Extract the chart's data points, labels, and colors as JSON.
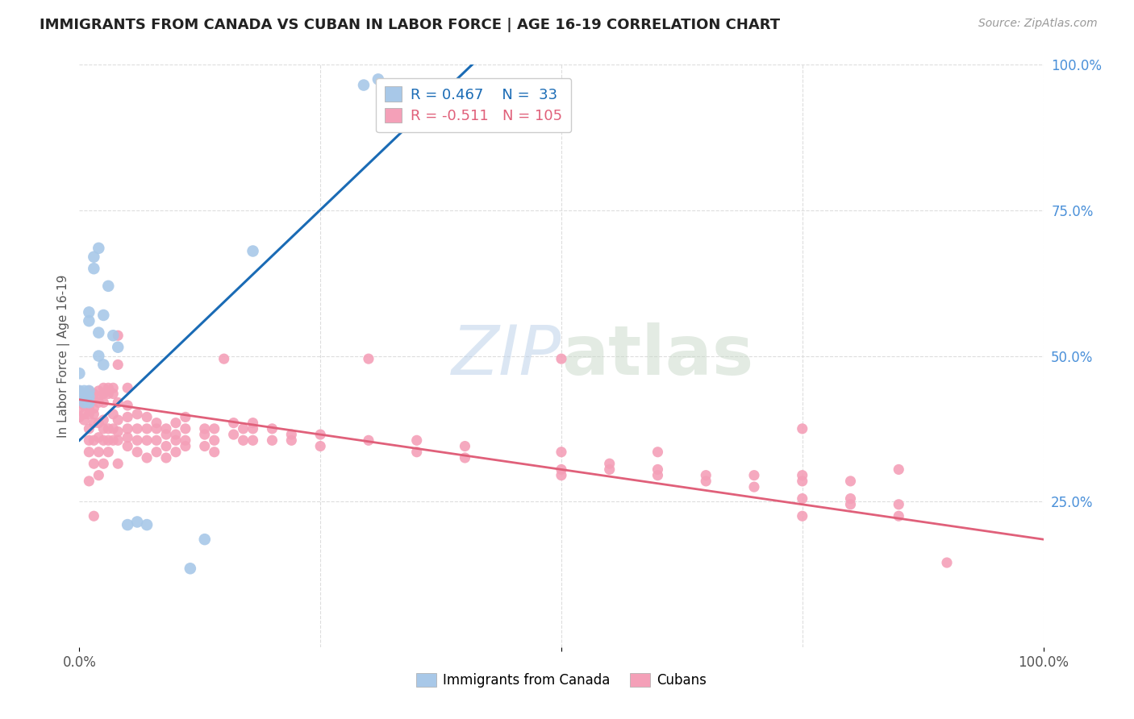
{
  "title": "IMMIGRANTS FROM CANADA VS CUBAN IN LABOR FORCE | AGE 16-19 CORRELATION CHART",
  "source": "Source: ZipAtlas.com",
  "ylabel": "In Labor Force | Age 16-19",
  "xlim": [
    0.0,
    1.0
  ],
  "ylim": [
    0.0,
    1.0
  ],
  "legend_r_canada": "0.467",
  "legend_n_canada": "33",
  "legend_r_cuban": "-0.511",
  "legend_n_cuban": "105",
  "canada_color": "#a8c8e8",
  "cuban_color": "#f4a0b8",
  "canada_line_color": "#1a6bb5",
  "cuban_line_color": "#e0607a",
  "watermark_zip": "ZIP",
  "watermark_atlas": "atlas",
  "background_color": "#ffffff",
  "grid_color": "#dddddd",
  "canada_scatter": [
    [
      0.0,
      0.44
    ],
    [
      0.0,
      0.47
    ],
    [
      0.0,
      0.43
    ],
    [
      0.005,
      0.44
    ],
    [
      0.005,
      0.43
    ],
    [
      0.005,
      0.42
    ],
    [
      0.01,
      0.575
    ],
    [
      0.01,
      0.56
    ],
    [
      0.01,
      0.44
    ],
    [
      0.01,
      0.43
    ],
    [
      0.01,
      0.42
    ],
    [
      0.015,
      0.67
    ],
    [
      0.015,
      0.65
    ],
    [
      0.02,
      0.685
    ],
    [
      0.02,
      0.54
    ],
    [
      0.02,
      0.5
    ],
    [
      0.025,
      0.57
    ],
    [
      0.025,
      0.485
    ],
    [
      0.03,
      0.62
    ],
    [
      0.035,
      0.535
    ],
    [
      0.04,
      0.515
    ],
    [
      0.05,
      0.21
    ],
    [
      0.06,
      0.215
    ],
    [
      0.07,
      0.21
    ],
    [
      0.115,
      0.135
    ],
    [
      0.13,
      0.185
    ],
    [
      0.18,
      0.68
    ],
    [
      0.295,
      0.965
    ],
    [
      0.31,
      0.975
    ]
  ],
  "cuban_scatter": [
    [
      0.0,
      0.44
    ],
    [
      0.0,
      0.43
    ],
    [
      0.0,
      0.42
    ],
    [
      0.0,
      0.41
    ],
    [
      0.0,
      0.395
    ],
    [
      0.005,
      0.435
    ],
    [
      0.005,
      0.425
    ],
    [
      0.005,
      0.415
    ],
    [
      0.005,
      0.4
    ],
    [
      0.005,
      0.39
    ],
    [
      0.01,
      0.44
    ],
    [
      0.01,
      0.435
    ],
    [
      0.01,
      0.42
    ],
    [
      0.01,
      0.41
    ],
    [
      0.01,
      0.4
    ],
    [
      0.01,
      0.375
    ],
    [
      0.01,
      0.355
    ],
    [
      0.01,
      0.335
    ],
    [
      0.01,
      0.285
    ],
    [
      0.015,
      0.435
    ],
    [
      0.015,
      0.425
    ],
    [
      0.015,
      0.41
    ],
    [
      0.015,
      0.4
    ],
    [
      0.015,
      0.385
    ],
    [
      0.015,
      0.355
    ],
    [
      0.015,
      0.315
    ],
    [
      0.015,
      0.225
    ],
    [
      0.02,
      0.44
    ],
    [
      0.02,
      0.43
    ],
    [
      0.02,
      0.42
    ],
    [
      0.02,
      0.385
    ],
    [
      0.02,
      0.36
    ],
    [
      0.02,
      0.335
    ],
    [
      0.02,
      0.295
    ],
    [
      0.025,
      0.445
    ],
    [
      0.025,
      0.435
    ],
    [
      0.025,
      0.42
    ],
    [
      0.025,
      0.39
    ],
    [
      0.025,
      0.375
    ],
    [
      0.025,
      0.355
    ],
    [
      0.025,
      0.315
    ],
    [
      0.03,
      0.445
    ],
    [
      0.03,
      0.435
    ],
    [
      0.03,
      0.375
    ],
    [
      0.03,
      0.355
    ],
    [
      0.03,
      0.335
    ],
    [
      0.035,
      0.445
    ],
    [
      0.035,
      0.435
    ],
    [
      0.035,
      0.4
    ],
    [
      0.035,
      0.375
    ],
    [
      0.035,
      0.355
    ],
    [
      0.04,
      0.42
    ],
    [
      0.04,
      0.39
    ],
    [
      0.04,
      0.37
    ],
    [
      0.04,
      0.355
    ],
    [
      0.04,
      0.315
    ],
    [
      0.04,
      0.485
    ],
    [
      0.04,
      0.535
    ],
    [
      0.05,
      0.415
    ],
    [
      0.05,
      0.395
    ],
    [
      0.05,
      0.375
    ],
    [
      0.05,
      0.345
    ],
    [
      0.05,
      0.36
    ],
    [
      0.05,
      0.445
    ],
    [
      0.06,
      0.4
    ],
    [
      0.06,
      0.375
    ],
    [
      0.06,
      0.355
    ],
    [
      0.06,
      0.335
    ],
    [
      0.07,
      0.395
    ],
    [
      0.07,
      0.375
    ],
    [
      0.07,
      0.355
    ],
    [
      0.07,
      0.325
    ],
    [
      0.08,
      0.385
    ],
    [
      0.08,
      0.375
    ],
    [
      0.08,
      0.355
    ],
    [
      0.08,
      0.335
    ],
    [
      0.09,
      0.375
    ],
    [
      0.09,
      0.365
    ],
    [
      0.09,
      0.345
    ],
    [
      0.09,
      0.325
    ],
    [
      0.1,
      0.385
    ],
    [
      0.1,
      0.365
    ],
    [
      0.1,
      0.355
    ],
    [
      0.1,
      0.335
    ],
    [
      0.11,
      0.395
    ],
    [
      0.11,
      0.375
    ],
    [
      0.11,
      0.355
    ],
    [
      0.11,
      0.345
    ],
    [
      0.13,
      0.365
    ],
    [
      0.13,
      0.345
    ],
    [
      0.13,
      0.375
    ],
    [
      0.14,
      0.375
    ],
    [
      0.14,
      0.355
    ],
    [
      0.14,
      0.335
    ],
    [
      0.15,
      0.495
    ],
    [
      0.16,
      0.385
    ],
    [
      0.16,
      0.365
    ],
    [
      0.17,
      0.375
    ],
    [
      0.17,
      0.355
    ],
    [
      0.18,
      0.385
    ],
    [
      0.18,
      0.375
    ],
    [
      0.18,
      0.355
    ],
    [
      0.2,
      0.375
    ],
    [
      0.2,
      0.355
    ],
    [
      0.22,
      0.365
    ],
    [
      0.22,
      0.355
    ],
    [
      0.25,
      0.365
    ],
    [
      0.25,
      0.345
    ],
    [
      0.3,
      0.495
    ],
    [
      0.3,
      0.355
    ],
    [
      0.35,
      0.355
    ],
    [
      0.35,
      0.335
    ],
    [
      0.4,
      0.345
    ],
    [
      0.4,
      0.325
    ],
    [
      0.5,
      0.495
    ],
    [
      0.5,
      0.335
    ],
    [
      0.5,
      0.305
    ],
    [
      0.5,
      0.295
    ],
    [
      0.55,
      0.315
    ],
    [
      0.55,
      0.305
    ],
    [
      0.6,
      0.335
    ],
    [
      0.6,
      0.305
    ],
    [
      0.6,
      0.295
    ],
    [
      0.65,
      0.295
    ],
    [
      0.65,
      0.285
    ],
    [
      0.7,
      0.295
    ],
    [
      0.7,
      0.275
    ],
    [
      0.75,
      0.375
    ],
    [
      0.75,
      0.295
    ],
    [
      0.75,
      0.285
    ],
    [
      0.75,
      0.255
    ],
    [
      0.75,
      0.225
    ],
    [
      0.8,
      0.285
    ],
    [
      0.8,
      0.255
    ],
    [
      0.8,
      0.245
    ],
    [
      0.85,
      0.305
    ],
    [
      0.85,
      0.245
    ],
    [
      0.85,
      0.225
    ],
    [
      0.9,
      0.145
    ]
  ],
  "canada_line_x": [
    0.0,
    0.42
  ],
  "canada_line_y": [
    0.355,
    1.02
  ],
  "cuban_line_x": [
    0.0,
    1.0
  ],
  "cuban_line_y": [
    0.425,
    0.185
  ]
}
